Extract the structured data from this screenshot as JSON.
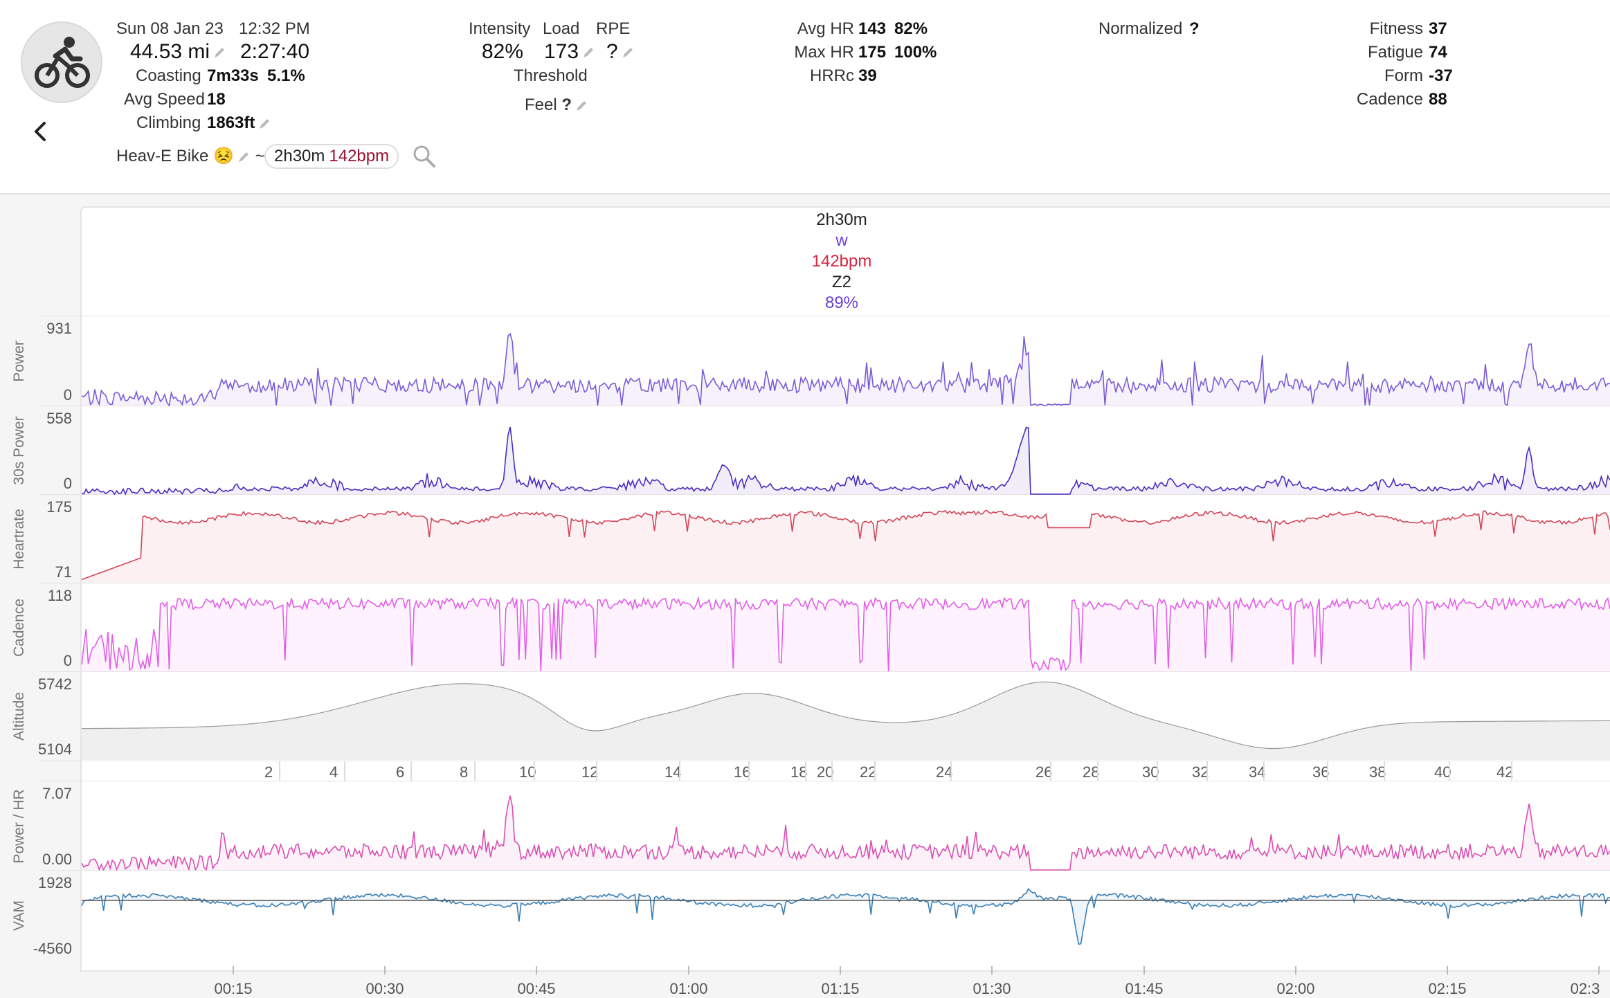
{
  "header": {
    "date": "Sun 08 Jan 23",
    "time": "12:32 PM",
    "distance": "44.53 mi",
    "duration": "2:27:40",
    "coasting_label": "Coasting",
    "coasting_time": "7m33s",
    "coasting_pct": "5.1%",
    "avg_speed_label": "Avg Speed",
    "avg_speed": "18",
    "climbing_label": "Climbing",
    "climbing": "1863ft",
    "intensity_label": "Intensity",
    "intensity": "82%",
    "load_label": "Load",
    "load": "173",
    "rpe_label": "RPE",
    "rpe": "?",
    "threshold_label": "Threshold",
    "feel_label": "Feel",
    "feel": "?",
    "avg_hr_label": "Avg HR",
    "avg_hr": "143",
    "avg_hr_pct": "82%",
    "max_hr_label": "Max HR",
    "max_hr": "175",
    "max_hr_pct": "100%",
    "hrrc_label": "HRRc",
    "hrrc": "39",
    "normalized_label": "Normalized",
    "normalized": "?",
    "fitness_label": "Fitness",
    "fitness": "37",
    "fatigue_label": "Fatigue",
    "fatigue": "74",
    "form_label": "Form",
    "form": "-37",
    "cadence_label": "Cadence",
    "cadence": "88",
    "bike": "Heav-E Bike 😣",
    "tilde": "~",
    "pill_duration": "2h30m",
    "pill_bpm": "142bpm"
  },
  "summary": {
    "duration": "2h30m",
    "power_unit": "w",
    "hr": "142bpm",
    "zone": "Z2",
    "pct": "89%"
  },
  "colors": {
    "power": "#7b5bd6",
    "power30": "#4b2bbf",
    "heartrate": "#d34556",
    "cadence": "#e35de8",
    "altitude": "#b0b0b0",
    "power_hr": "#d94fb1",
    "vam": "#3a7fb5"
  },
  "charts": [
    {
      "key": "power",
      "label": "Power",
      "top": "931",
      "bottom": "0"
    },
    {
      "key": "power30",
      "label": "30s Power",
      "top": "558",
      "bottom": "0"
    },
    {
      "key": "heartrate",
      "label": "Heartrate",
      "top": "175",
      "bottom": "71"
    },
    {
      "key": "cadence",
      "label": "Cadence",
      "top": "118",
      "bottom": "0"
    },
    {
      "key": "altitude",
      "label": "Altitude",
      "top": "5742",
      "bottom": "5104"
    },
    {
      "key": "power_hr",
      "label": "Power / HR",
      "top": "7.07",
      "bottom": "0.00"
    },
    {
      "key": "vam",
      "label": "VAM",
      "top": "1928",
      "bottom": "-4560"
    }
  ],
  "mile_markers": [
    "2",
    "4",
    "6",
    "8",
    "10",
    "12",
    "14",
    "16",
    "18",
    "20",
    "22",
    "24",
    "26",
    "28",
    "30",
    "32",
    "34",
    "36",
    "38",
    "40",
    "42"
  ],
  "x_axis": [
    "00:15",
    "00:30",
    "00:45",
    "01:00",
    "01:15",
    "01:30",
    "01:45",
    "02:00",
    "02:15",
    "02:3"
  ]
}
